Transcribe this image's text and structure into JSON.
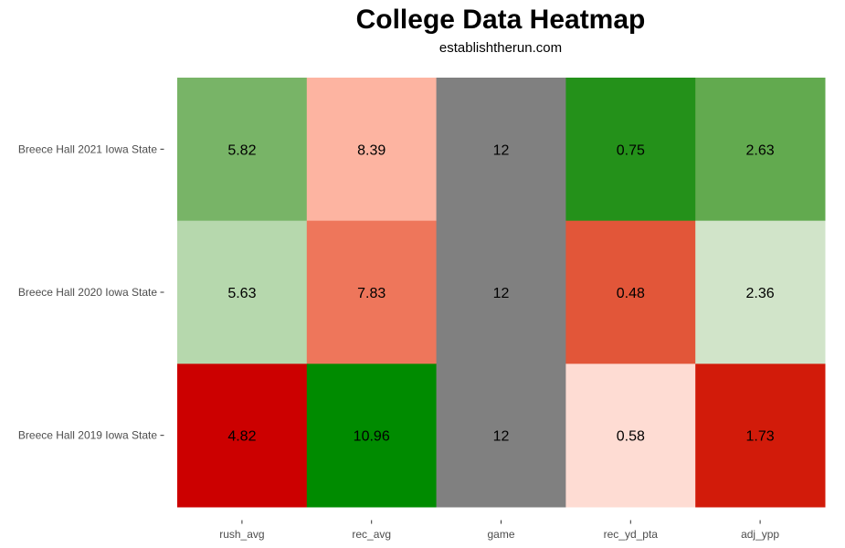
{
  "chart_data": {
    "type": "heatmap",
    "title": "College Data Heatmap",
    "subtitle": "establishtherun.com",
    "columns": [
      "rush_avg",
      "rec_avg",
      "game",
      "rec_yd_pta",
      "adj_ypp"
    ],
    "rows": [
      "Breece Hall 2021 Iowa State",
      "Breece Hall 2020 Iowa State",
      "Breece Hall 2019 Iowa State"
    ],
    "values": [
      [
        "5.82",
        "8.39",
        "12",
        "0.75",
        "2.63"
      ],
      [
        "5.63",
        "7.83",
        "12",
        "0.48",
        "2.36"
      ],
      [
        "4.82",
        "10.96",
        "12",
        "0.58",
        "1.73"
      ]
    ],
    "colors": [
      [
        "#78b467",
        "#fdb4a1",
        "#808080",
        "#24911a",
        "#62aa4f"
      ],
      [
        "#b6d8ad",
        "#ee765b",
        "#808080",
        "#e25639",
        "#d1e4c9"
      ],
      [
        "#cc0000",
        "#008b00",
        "#808080",
        "#fedcd3",
        "#d21b0a"
      ]
    ],
    "grid": false,
    "legend": "none"
  }
}
